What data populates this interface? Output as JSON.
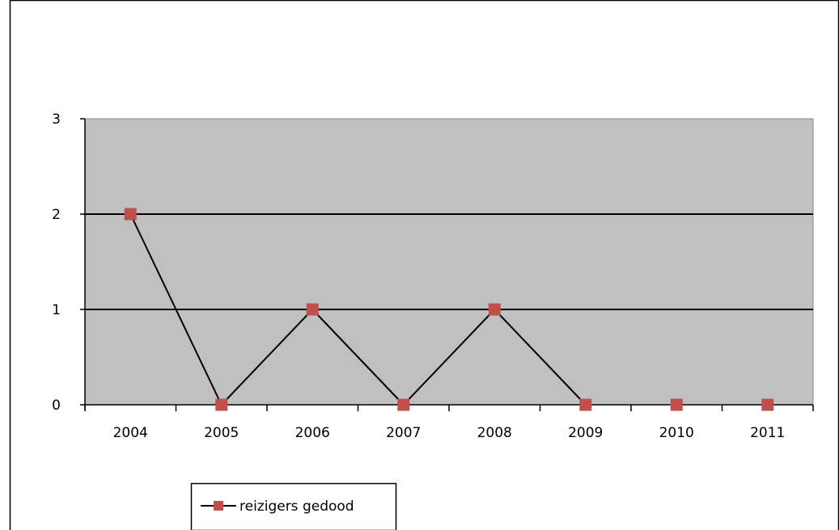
{
  "chart_data": {
    "type": "line",
    "title": "",
    "xlabel": "",
    "ylabel": "",
    "categories": [
      "2004",
      "2005",
      "2006",
      "2007",
      "2008",
      "2009",
      "2010",
      "2011"
    ],
    "series": [
      {
        "name": "reizigers gedood",
        "values": [
          2,
          0,
          1,
          0,
          1,
          0,
          0,
          0
        ],
        "line_color": "#000000",
        "marker_color": "#c0504d",
        "marker": "square",
        "connected_through": "2009"
      }
    ],
    "ylim": [
      0,
      3
    ],
    "yticks": [
      "0",
      "1",
      "2",
      "3"
    ],
    "grid": true,
    "legend": "bottom-left",
    "colors": {
      "plot_background": "#c0c0c0",
      "gridline": "#000000",
      "frame": "#000000"
    }
  }
}
